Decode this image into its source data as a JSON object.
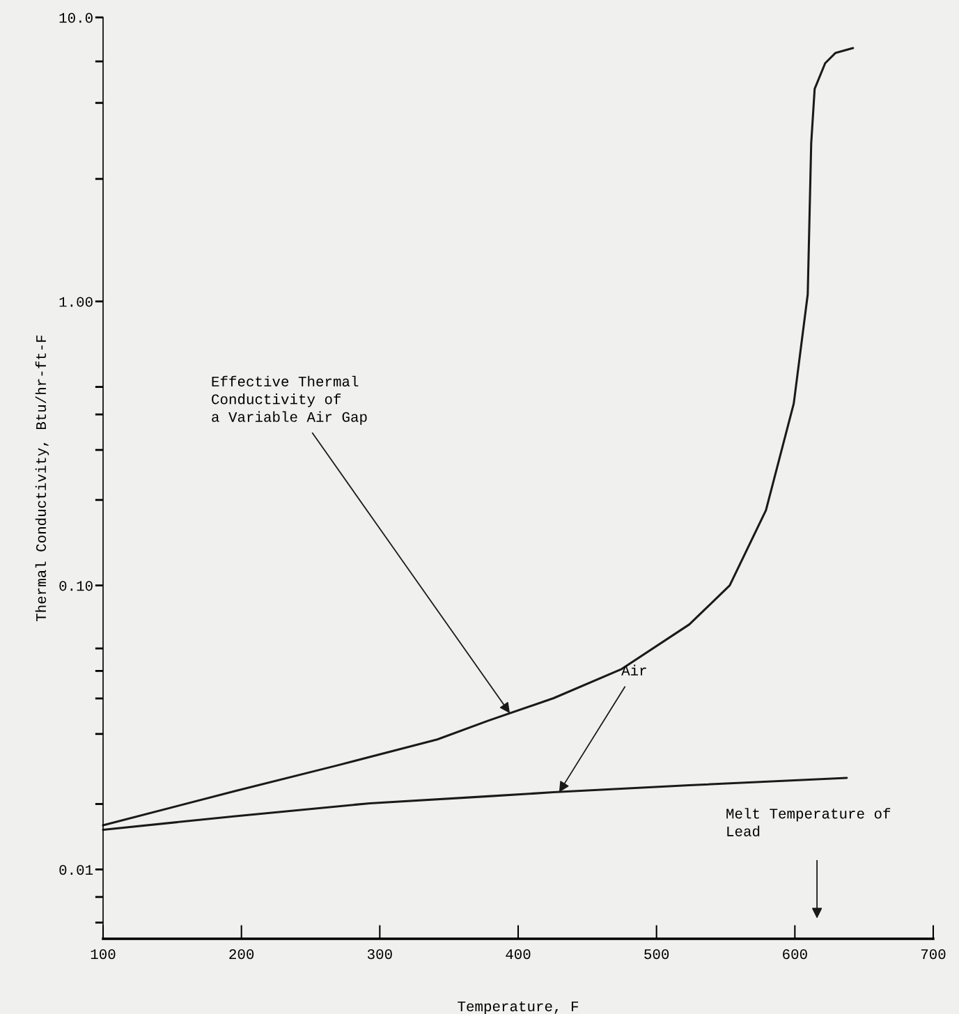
{
  "chart_data": {
    "type": "line",
    "xlabel": "Temperature, F",
    "ylabel": "Thermal Conductivity, Btu/hr-ft-F",
    "series": [
      {
        "color": "#1a1a1a",
        "x": [
          100,
          195.6,
          268.6,
          341.6,
          378.3,
          425.6,
          474.9,
          523.7,
          552.9,
          579.1,
          599.2,
          609.3,
          611.8,
          614.3,
          621.9,
          629.4,
          642.0
        ],
        "values": [
          0.0143,
          0.0189,
          0.0232,
          0.0287,
          0.0334,
          0.0401,
          0.0508,
          0.0729,
          0.1,
          0.184,
          0.437,
          1.06,
          3.6,
          5.6,
          6.9,
          7.5,
          7.8
        ]
      },
      {
        "color": "#1a1a1a",
        "x": [
          100,
          195.6,
          292.8,
          378.3,
          425.6,
          523.7,
          637.5
        ],
        "values": [
          0.0138,
          0.0154,
          0.0171,
          0.0181,
          0.0187,
          0.0198,
          0.021
        ]
      }
    ],
    "log": "y",
    "marker": "none",
    "line_style": "solid",
    "grid": false,
    "legend": false,
    "xlim": [
      100,
      700
    ],
    "xticks": [
      100,
      200,
      300,
      400,
      500,
      600,
      700
    ],
    "ylim": [
      0.0057,
      10
    ],
    "yticks": [
      {
        "value": 10,
        "label": "10.0"
      },
      {
        "value": 7,
        "label": null
      },
      {
        "value": 5,
        "label": null
      },
      {
        "value": 2.7,
        "label": null
      },
      {
        "value": 1,
        "label": "1.00"
      },
      {
        "value": 0.5,
        "label": null
      },
      {
        "value": 0.4,
        "label": null
      },
      {
        "value": 0.3,
        "label": null
      },
      {
        "value": 0.2,
        "label": null
      },
      {
        "value": 0.1,
        "label": "0.10"
      },
      {
        "value": 0.06,
        "label": null
      },
      {
        "value": 0.05,
        "label": null
      },
      {
        "value": 0.04,
        "label": null
      },
      {
        "value": 0.03,
        "label": null
      },
      {
        "value": 0.017,
        "label": null
      },
      {
        "value": 0.01,
        "label": "0.01"
      },
      {
        "value": 0.008,
        "label": null
      },
      {
        "value": 0.0065,
        "label": null
      }
    ],
    "annotations": [
      {
        "text": "Effective Thermal\nConductivity of\na Variable Air Gap",
        "x": 394,
        "y": 0.0355
      },
      {
        "text": "Air",
        "x": 429.6,
        "y": 0.0187
      },
      "Melt Temperature of\nLead"
    ]
  }
}
